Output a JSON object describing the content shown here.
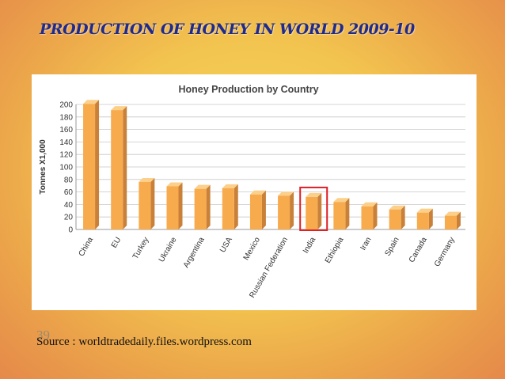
{
  "slide": {
    "title": "PRODUCTION OF HONEY IN WORLD 2009-10",
    "slide_number": "39",
    "source": "Source : worldtradedaily.files.wordpress.com"
  },
  "colors": {
    "bar_front": "#f7ab4d",
    "bar_side": "#c9813a",
    "bar_top": "#fcd08a",
    "highlight_box": "#e01f26"
  },
  "chart_data": {
    "type": "bar",
    "title": "Honey Production by Country",
    "xlabel": "",
    "ylabel": "Tonnes X1,000",
    "ylim": [
      0,
      200
    ],
    "yticks": [
      0,
      20,
      40,
      60,
      80,
      100,
      120,
      140,
      160,
      180,
      200
    ],
    "grid": true,
    "categories": [
      "China",
      "EU",
      "Turkey",
      "Ukraine",
      "Argentina",
      "USA",
      "Mexico",
      "Russian Federation",
      "India",
      "Ethiopia",
      "Iran",
      "Spain",
      "Canada",
      "Germany"
    ],
    "values": [
      201,
      191,
      76,
      69,
      65,
      66,
      56,
      54,
      52,
      44,
      37,
      32,
      27,
      22
    ],
    "highlighted_category": "India"
  }
}
